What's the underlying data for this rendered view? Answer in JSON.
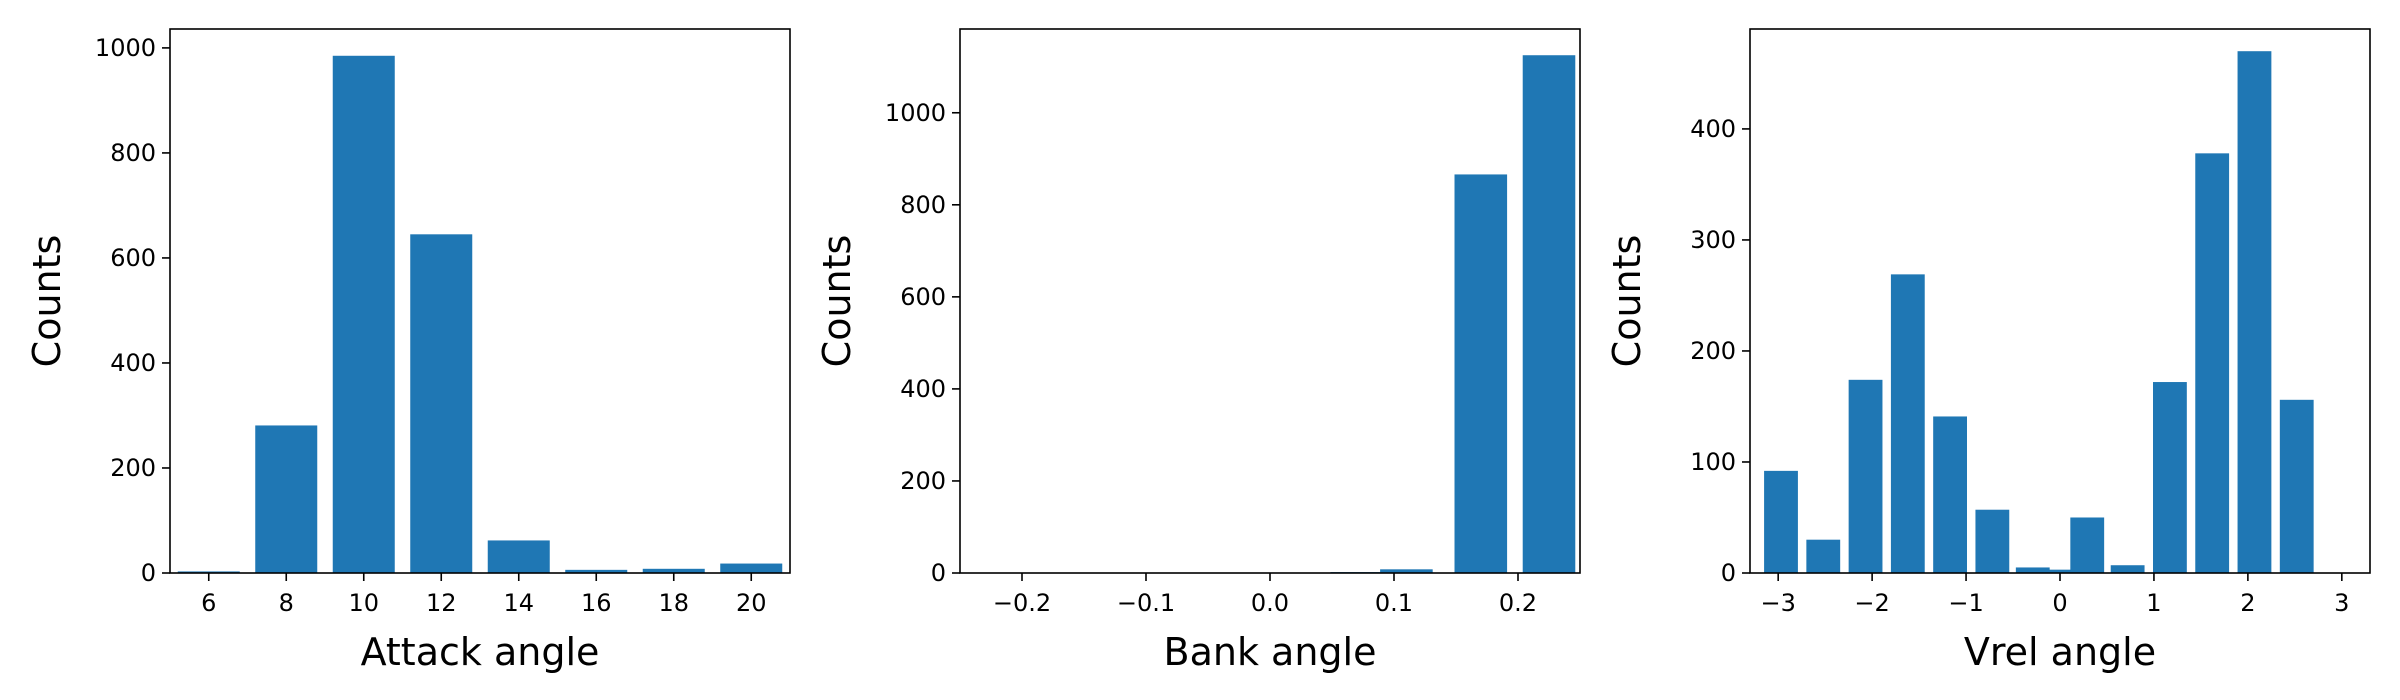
{
  "chart_data": [
    {
      "type": "bar",
      "xlabel": "Attack angle",
      "ylabel": "Counts",
      "bar_width": 1.6,
      "xlim": [
        5,
        21
      ],
      "ylim": [
        0,
        1036
      ],
      "xticks": [
        6,
        8,
        10,
        12,
        14,
        16,
        18,
        20
      ],
      "xtick_labels": [
        "6",
        "8",
        "10",
        "12",
        "14",
        "16",
        "18",
        "20"
      ],
      "yticks": [
        0,
        200,
        400,
        600,
        800,
        1000
      ],
      "ytick_labels": [
        "0",
        "200",
        "400",
        "600",
        "800",
        "1000"
      ],
      "x": [
        6,
        8,
        10,
        12,
        14,
        16,
        18,
        20
      ],
      "values": [
        3,
        281,
        985,
        645,
        62,
        6,
        8,
        18
      ],
      "color": "#1f77b4"
    },
    {
      "type": "bar",
      "xlabel": "Bank angle",
      "ylabel": "Counts",
      "bar_width": 0.0424,
      "xlim": [
        -0.25,
        0.25
      ],
      "ylim": [
        0,
        1182
      ],
      "xticks": [
        -0.2,
        -0.1,
        0.0,
        0.1,
        0.2
      ],
      "xtick_labels": [
        "−0.2",
        "−0.1",
        "0.0",
        "0.1",
        "0.2"
      ],
      "yticks": [
        0,
        200,
        400,
        600,
        800,
        1000
      ],
      "ytick_labels": [
        "0",
        "200",
        "400",
        "600",
        "800",
        "1000"
      ],
      "x": [
        -0.2,
        -0.153,
        -0.106,
        -0.059,
        -0.012,
        0.035,
        0.082,
        0.129,
        0.171,
        0.224
      ],
      "x_centers_note": "",
      "values": [
        0,
        0,
        0,
        0,
        0,
        0,
        2,
        8,
        866,
        1125
      ],
      "color": "#1f77b4"
    },
    {
      "type": "bar",
      "xlabel": "Vrel angle",
      "ylabel": "Counts",
      "bar_width": 0.36,
      "xlim": [
        -3.3,
        3.3
      ],
      "ylim": [
        0,
        490
      ],
      "xticks": [
        -3,
        -2,
        -1,
        0,
        1,
        2,
        3
      ],
      "xtick_labels": [
        "−3",
        "−2",
        "−1",
        "0",
        "1",
        "2",
        "3"
      ],
      "yticks": [
        0,
        100,
        200,
        300,
        400
      ],
      "ytick_labels": [
        "0",
        "100",
        "200",
        "300",
        "400"
      ],
      "x": [
        -2.97,
        -2.52,
        -2.07,
        -1.62,
        -1.17,
        -0.72,
        -0.27,
        0.0,
        0.27,
        0.72,
        1.17,
        1.62,
        2.07,
        2.52,
        2.97
      ],
      "values": [
        92,
        30,
        174,
        269,
        141,
        57,
        5,
        3,
        50,
        7,
        172,
        378,
        470,
        156,
        0
      ],
      "color": "#1f77b4"
    }
  ]
}
